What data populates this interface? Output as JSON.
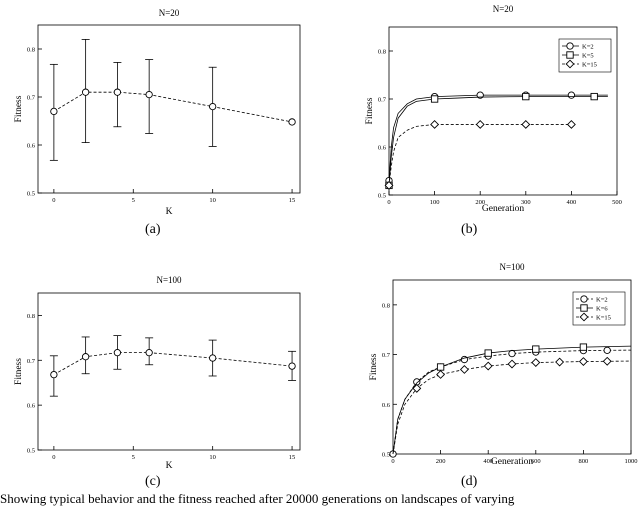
{
  "captions": [
    "(a)",
    "(b)",
    "(c)",
    "(d)"
  ],
  "footnote": "Showing typical behavior and the fitness reached after 20000 generations on landscapes of varying",
  "chart_data": [
    {
      "id": "a",
      "type": "scatter",
      "title": "N=20",
      "xlabel": "K",
      "ylabel": "Fitness",
      "xlim": [
        -1,
        15.5
      ],
      "ylim": [
        0.5,
        0.85
      ],
      "xticks": [
        0,
        5,
        10,
        15
      ],
      "yticks": [
        0.5,
        0.6,
        0.7,
        0.8
      ],
      "xtick_labels": [
        "0",
        "5",
        "10",
        "15"
      ],
      "ytick_labels": [
        "0.5",
        "0.6",
        "0.7",
        "0.8"
      ],
      "frame": "box",
      "series": [
        {
          "style": "dashed",
          "marker": "circle",
          "x": [
            0,
            2,
            4,
            6,
            10,
            15
          ],
          "y": [
            0.67,
            0.71,
            0.71,
            0.705,
            0.68,
            0.648
          ],
          "err_low": [
            0.568,
            0.605,
            0.638,
            0.624,
            0.597,
            0.648
          ],
          "err_high": [
            0.768,
            0.82,
            0.772,
            0.778,
            0.762,
            0.648
          ]
        }
      ]
    },
    {
      "id": "b",
      "type": "line",
      "title": "N=20",
      "xlabel": "Generation",
      "ylabel": "Fitness",
      "xlim": [
        0,
        500
      ],
      "ylim": [
        0.5,
        0.85
      ],
      "xticks": [
        0,
        100,
        200,
        300,
        400,
        500
      ],
      "yticks": [
        0.5,
        0.6,
        0.7,
        0.8
      ],
      "xtick_labels": [
        "0",
        "100",
        "200",
        "300",
        "400",
        "500"
      ],
      "ytick_labels": [
        "0.5",
        "0.6",
        "0.7",
        "0.8"
      ],
      "legend_position": "top-right",
      "series": [
        {
          "name": "K=2",
          "marker": "circle",
          "style": "solid",
          "x": [
            0,
            5,
            10,
            20,
            40,
            60,
            100,
            200,
            300,
            400,
            480
          ],
          "y": [
            0.53,
            0.6,
            0.64,
            0.67,
            0.69,
            0.7,
            0.705,
            0.708,
            0.708,
            0.708,
            0.708
          ],
          "marker_x": [
            0,
            100,
            200,
            300,
            400
          ]
        },
        {
          "name": "K=5",
          "marker": "square",
          "style": "solid",
          "x": [
            0,
            5,
            10,
            20,
            40,
            60,
            100,
            150,
            200,
            300,
            480
          ],
          "y": [
            0.52,
            0.58,
            0.62,
            0.66,
            0.685,
            0.695,
            0.7,
            0.702,
            0.704,
            0.705,
            0.705
          ],
          "marker_x": [
            0,
            100,
            300,
            450
          ]
        },
        {
          "name": "K=15",
          "marker": "diamond",
          "style": "dashed",
          "x": [
            0,
            5,
            10,
            20,
            40,
            60,
            100,
            200,
            400
          ],
          "y": [
            0.52,
            0.56,
            0.59,
            0.62,
            0.635,
            0.643,
            0.647,
            0.647,
            0.647
          ],
          "marker_x": [
            0,
            100,
            200,
            300,
            400
          ]
        }
      ]
    },
    {
      "id": "c",
      "type": "scatter",
      "title": "N=100",
      "xlabel": "K",
      "ylabel": "Fitness",
      "xlim": [
        -1,
        15.5
      ],
      "ylim": [
        0.5,
        0.85
      ],
      "xticks": [
        0,
        5,
        10,
        15
      ],
      "yticks": [
        0.5,
        0.6,
        0.7,
        0.8
      ],
      "xtick_labels": [
        "0",
        "5",
        "10",
        "15"
      ],
      "ytick_labels": [
        "0.5",
        "0.6",
        "0.7",
        "0.8"
      ],
      "frame": "box",
      "series": [
        {
          "style": "dashed",
          "marker": "circle",
          "x": [
            0,
            2,
            4,
            6,
            10,
            15
          ],
          "y": [
            0.668,
            0.708,
            0.717,
            0.717,
            0.705,
            0.687
          ],
          "err_low": [
            0.62,
            0.67,
            0.68,
            0.69,
            0.665,
            0.655
          ],
          "err_high": [
            0.71,
            0.752,
            0.755,
            0.75,
            0.745,
            0.72
          ]
        }
      ]
    },
    {
      "id": "d",
      "type": "line",
      "title": "N=100",
      "xlabel": "Generation",
      "ylabel": "Fitness",
      "xlim": [
        0,
        1000
      ],
      "ylim": [
        0.5,
        0.85
      ],
      "xticks": [
        0,
        200,
        400,
        600,
        800,
        1000
      ],
      "yticks": [
        0.5,
        0.6,
        0.7,
        0.8
      ],
      "xtick_labels": [
        "0",
        "200",
        "400",
        "600",
        "800",
        "1000"
      ],
      "ytick_labels": [
        "0.5",
        "0.6",
        "0.7",
        "0.8"
      ],
      "legend_position": "top-right",
      "series": [
        {
          "name": "K=2",
          "marker": "circle",
          "style": "dashed",
          "x": [
            0,
            20,
            50,
            100,
            150,
            200,
            300,
            400,
            500,
            600,
            800,
            1000
          ],
          "y": [
            0.5,
            0.57,
            0.61,
            0.645,
            0.665,
            0.675,
            0.69,
            0.697,
            0.702,
            0.705,
            0.708,
            0.709
          ],
          "marker_x": [
            0,
            100,
            200,
            300,
            400,
            500,
            600,
            800,
            900
          ]
        },
        {
          "name": "K=6",
          "marker": "square",
          "style": "solid",
          "x": [
            0,
            20,
            50,
            100,
            150,
            200,
            300,
            400,
            500,
            600,
            800,
            1000
          ],
          "y": [
            0.5,
            0.57,
            0.61,
            0.643,
            0.663,
            0.675,
            0.693,
            0.703,
            0.708,
            0.711,
            0.715,
            0.717
          ],
          "marker_x": [
            200,
            400,
            600,
            800
          ]
        },
        {
          "name": "K=15",
          "marker": "diamond",
          "style": "dashed",
          "x": [
            0,
            20,
            50,
            100,
            150,
            200,
            300,
            400,
            500,
            600,
            800,
            1000
          ],
          "y": [
            0.5,
            0.56,
            0.6,
            0.632,
            0.65,
            0.66,
            0.67,
            0.677,
            0.681,
            0.684,
            0.686,
            0.687
          ],
          "marker_x": [
            100,
            200,
            300,
            400,
            500,
            600,
            700,
            800,
            900
          ]
        }
      ]
    }
  ]
}
